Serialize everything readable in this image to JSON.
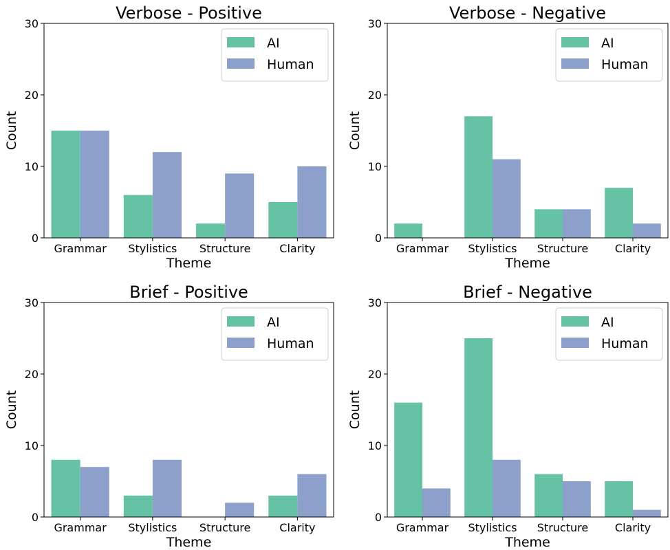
{
  "colors": {
    "ai": "#66c2a5",
    "human": "#8da0cb"
  },
  "chart_data": [
    {
      "type": "bar",
      "title": "Verbose - Positive",
      "xlabel": "Theme",
      "ylabel": "Count",
      "ylim": [
        0,
        30
      ],
      "yticks": [
        0,
        10,
        20,
        30
      ],
      "categories": [
        "Grammar",
        "Stylistics",
        "Structure",
        "Clarity"
      ],
      "series": [
        {
          "name": "AI",
          "values": [
            15,
            6,
            2,
            5
          ]
        },
        {
          "name": "Human",
          "values": [
            15,
            12,
            9,
            10
          ]
        }
      ],
      "legend": "upper right"
    },
    {
      "type": "bar",
      "title": "Verbose - Negative",
      "xlabel": "Theme",
      "ylabel": "Count",
      "ylim": [
        0,
        30
      ],
      "yticks": [
        0,
        10,
        20,
        30
      ],
      "categories": [
        "Grammar",
        "Stylistics",
        "Structure",
        "Clarity"
      ],
      "series": [
        {
          "name": "AI",
          "values": [
            2,
            17,
            4,
            7
          ]
        },
        {
          "name": "Human",
          "values": [
            0,
            11,
            4,
            2
          ]
        }
      ],
      "legend": "upper right"
    },
    {
      "type": "bar",
      "title": "Brief - Positive",
      "xlabel": "Theme",
      "ylabel": "Count",
      "ylim": [
        0,
        30
      ],
      "yticks": [
        0,
        10,
        20,
        30
      ],
      "categories": [
        "Grammar",
        "Stylistics",
        "Structure",
        "Clarity"
      ],
      "series": [
        {
          "name": "AI",
          "values": [
            8,
            3,
            0,
            3
          ]
        },
        {
          "name": "Human",
          "values": [
            7,
            8,
            2,
            6
          ]
        }
      ],
      "legend": "upper right"
    },
    {
      "type": "bar",
      "title": "Brief - Negative",
      "xlabel": "Theme",
      "ylabel": "Count",
      "ylim": [
        0,
        30
      ],
      "yticks": [
        0,
        10,
        20,
        30
      ],
      "categories": [
        "Grammar",
        "Stylistics",
        "Structure",
        "Clarity"
      ],
      "series": [
        {
          "name": "AI",
          "values": [
            16,
            25,
            6,
            5
          ]
        },
        {
          "name": "Human",
          "values": [
            4,
            8,
            5,
            1
          ]
        }
      ],
      "legend": "upper right"
    }
  ]
}
